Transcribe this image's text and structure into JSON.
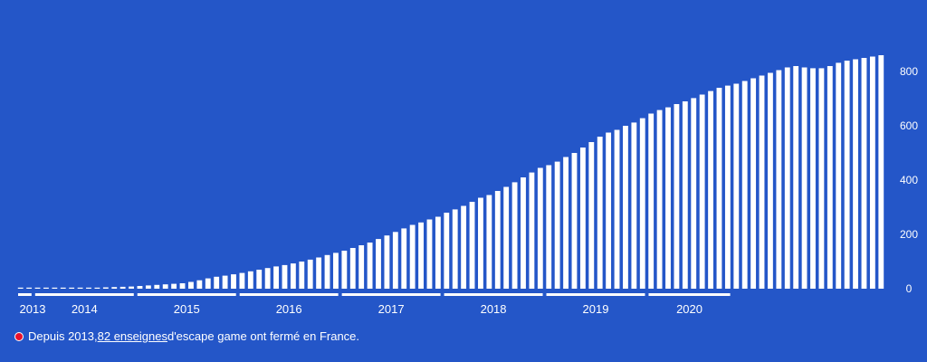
{
  "colors": {
    "background": "#2456c8",
    "open_bar": "#ffffff",
    "closed_bar": "#e8112d",
    "text": "#ffffff"
  },
  "legend": {
    "prefix": "Depuis 2013, ",
    "link": "82 enseignes",
    "suffix": " d'escape game ont fermé en France."
  },
  "chart_data": {
    "type": "bar",
    "ylim": [
      0,
      900
    ],
    "yticks": [
      0,
      200,
      400,
      600,
      800
    ],
    "y_axis_position": "right",
    "grid": false,
    "year_labels": [
      "2013",
      "2014",
      "2015",
      "2016",
      "2017",
      "2018",
      "2019",
      "2020"
    ],
    "year_groups": [
      {
        "year": "2013",
        "months": 2
      },
      {
        "year": "2014",
        "months": 12
      },
      {
        "year": "2015",
        "months": 12
      },
      {
        "year": "2016",
        "months": 12
      },
      {
        "year": "2017",
        "months": 12
      },
      {
        "year": "2018",
        "months": 12
      },
      {
        "year": "2019",
        "months": 12
      },
      {
        "year": "2020",
        "months": 10
      }
    ],
    "series": [
      {
        "values": [
          1,
          1,
          1,
          1,
          1,
          2,
          2,
          3,
          3,
          4,
          5,
          6,
          7,
          8,
          10,
          12,
          14,
          16,
          18,
          20,
          25,
          31,
          38,
          44,
          48,
          53,
          58,
          64,
          70,
          76,
          82,
          87,
          93,
          100,
          107,
          115,
          124,
          132,
          140,
          150,
          160,
          170,
          183,
          196,
          209,
          222,
          235,
          244,
          255,
          265,
          280,
          292,
          305,
          320,
          335,
          345,
          360,
          375,
          392,
          410,
          428,
          445,
          455,
          468,
          485,
          500,
          520,
          540,
          560,
          575,
          585,
          600,
          612,
          628,
          645,
          658,
          668,
          680,
          690,
          702,
          715,
          728,
          740,
          748,
          755,
          765,
          775,
          785,
          795,
          805,
          815,
          820,
          815,
          812,
          812,
          820,
          832,
          840,
          845,
          850,
          855,
          860
        ]
      },
      {
        "values": [
          0,
          0,
          0,
          0,
          0,
          0,
          0,
          0,
          0,
          0,
          0,
          0,
          0,
          0,
          0,
          0,
          0,
          0,
          0,
          0,
          0,
          0,
          0,
          0,
          0,
          0,
          0,
          0,
          0,
          0,
          0,
          0,
          0,
          0,
          0,
          0,
          0,
          0,
          0,
          0,
          0,
          0,
          0,
          0,
          0,
          0,
          0,
          0,
          0,
          0,
          0,
          0,
          0,
          0,
          0,
          0,
          0,
          0,
          0,
          0,
          0,
          0,
          0,
          0,
          0,
          0,
          0,
          0,
          0,
          0,
          0,
          0,
          0,
          0,
          0,
          0,
          0,
          0,
          0,
          0,
          0,
          0,
          0,
          0,
          0,
          0,
          0,
          0,
          0,
          0,
          0,
          0,
          0,
          0,
          0,
          0,
          0,
          0,
          0,
          0,
          0,
          0
        ]
      }
    ]
  }
}
